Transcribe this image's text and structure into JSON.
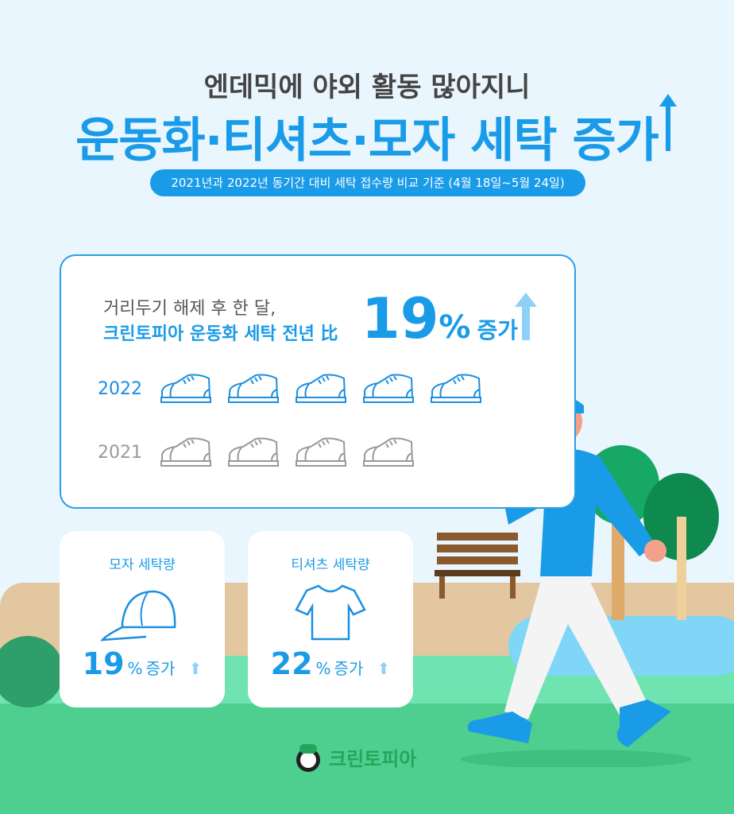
{
  "header": {
    "subtitle": "엔데믹에 야외 활동 많아지니",
    "title": "운동화·티셔츠·모자 세탁 증가",
    "basis": "2021년과 2022년 동기간 대비 세탁 접수량 비교 기준 (4월 18일~5월 24일)"
  },
  "main_card": {
    "line1": "거리두기 해제 후 한 달,",
    "line2": "크린토피아 운동화 세탁 전년 比",
    "value": "19",
    "unit": "%",
    "change": "증가",
    "rows": [
      {
        "year": "2022",
        "shoes": 5,
        "color": "#1a8fe0"
      },
      {
        "year": "2021",
        "shoes": 4,
        "color": "#999999"
      }
    ]
  },
  "cards": [
    {
      "label": "모자 세탁량",
      "value": "19",
      "unit": "%",
      "change": "증가",
      "icon": "cap-icon"
    },
    {
      "label": "티셔츠 세탁량",
      "value": "22",
      "unit": "%",
      "change": "증가",
      "icon": "tshirt-icon"
    }
  ],
  "brand": {
    "name": "크린토피아"
  },
  "colors": {
    "accent": "#1a9be8",
    "arrow": "#8fd0f7",
    "ground": "#5fd49a",
    "sand": "#e2c7a0"
  }
}
